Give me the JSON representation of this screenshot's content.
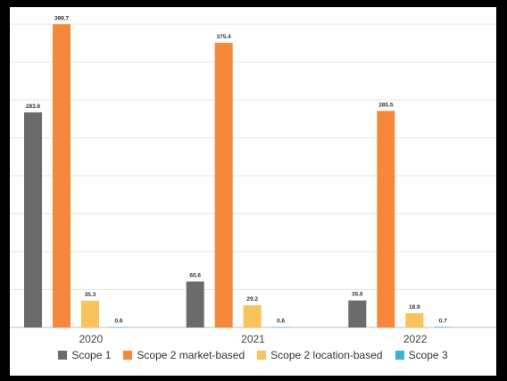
{
  "chart_data": {
    "type": "bar",
    "categories": [
      "2020",
      "2021",
      "2022"
    ],
    "series": [
      {
        "name": "Scope 1",
        "color": "#6b6b6b",
        "values": [
          283.6,
          60.6,
          35.6
        ],
        "labels": [
          "283.6",
          "60.6",
          "35.6"
        ]
      },
      {
        "name": "Scope 2 market-based",
        "color": "#f5883a",
        "values": [
          399.7,
          375.4,
          285.5
        ],
        "labels": [
          "399.7",
          "375.4",
          "285.5"
        ]
      },
      {
        "name": "Scope 2 location-based",
        "color": "#f9c25b",
        "values": [
          35.3,
          29.2,
          18.9
        ],
        "labels": [
          "35.3",
          "29.2",
          "18.9"
        ]
      },
      {
        "name": "Scope 3",
        "color": "#35b4d8",
        "values": [
          0.6,
          0.6,
          0.7
        ],
        "labels": [
          "0.6",
          "0.6",
          "0.7"
        ]
      }
    ],
    "ylim": [
      0,
      400
    ],
    "grid": true,
    "legend_position": "bottom"
  }
}
